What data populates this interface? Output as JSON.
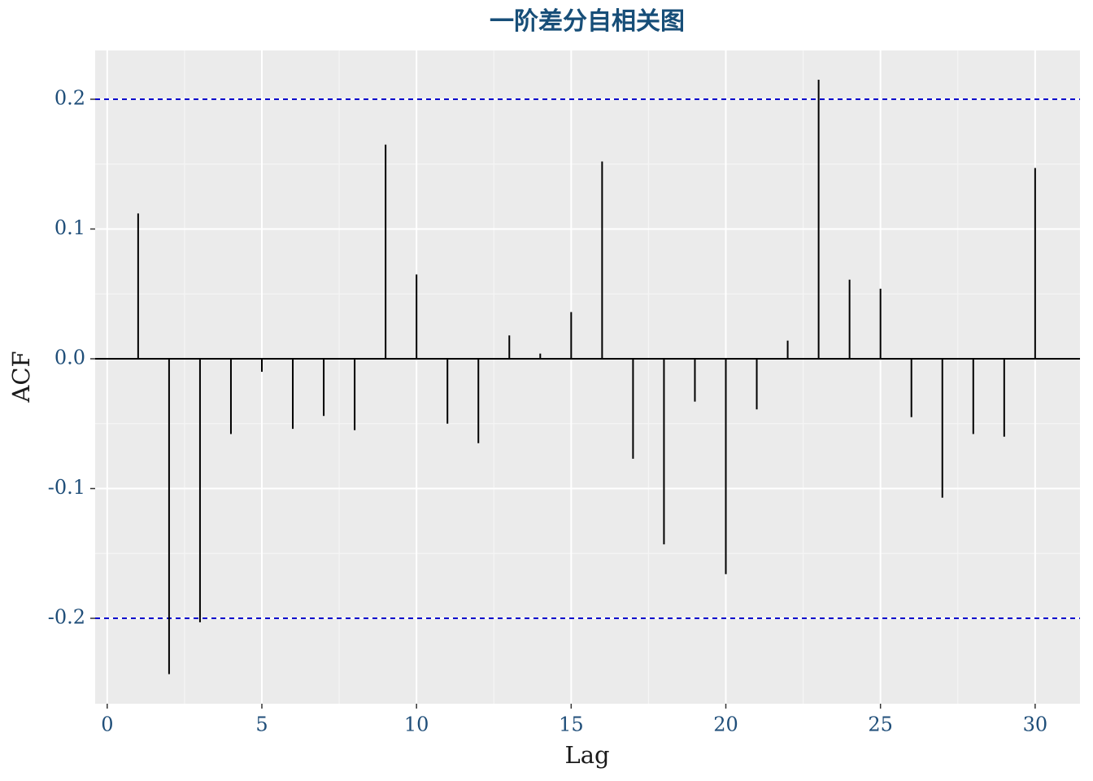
{
  "chart_data": {
    "type": "acf",
    "title": "一阶差分自相关图",
    "x_label": "Lag",
    "y_label": "ACF",
    "x": [
      1,
      2,
      3,
      4,
      5,
      6,
      7,
      8,
      9,
      10,
      11,
      12,
      13,
      14,
      15,
      16,
      17,
      18,
      19,
      20,
      21,
      22,
      23,
      24,
      25,
      26,
      27,
      28,
      29,
      30
    ],
    "values": [
      0.112,
      -0.243,
      -0.203,
      -0.058,
      -0.01,
      -0.054,
      -0.044,
      -0.055,
      0.165,
      0.065,
      -0.05,
      -0.065,
      0.018,
      0.004,
      0.036,
      0.152,
      -0.077,
      -0.143,
      -0.033,
      -0.166,
      -0.039,
      0.014,
      0.215,
      0.061,
      0.054,
      -0.045,
      -0.107,
      -0.058,
      -0.06,
      0.147
    ],
    "color": "#000000",
    "hlines": [
      {
        "value": 0,
        "color": "#000000",
        "dashed": false
      },
      {
        "value": 0.2,
        "color": "#0000cc",
        "dashed": true
      },
      {
        "value": -0.2,
        "color": "#0000cc",
        "dashed": true
      }
    ],
    "xlim": [
      -0.39,
      31.45
    ],
    "xticks": [
      0,
      5,
      10,
      15,
      20,
      25,
      30
    ],
    "ylim": [
      -0.2658,
      0.2376
    ],
    "yticks": [
      {
        "value": -0.2,
        "label": "-0.2"
      },
      -0.1,
      {
        "value": 0,
        "label": "0.0"
      },
      0.1,
      0.2
    ],
    "grid": true
  }
}
